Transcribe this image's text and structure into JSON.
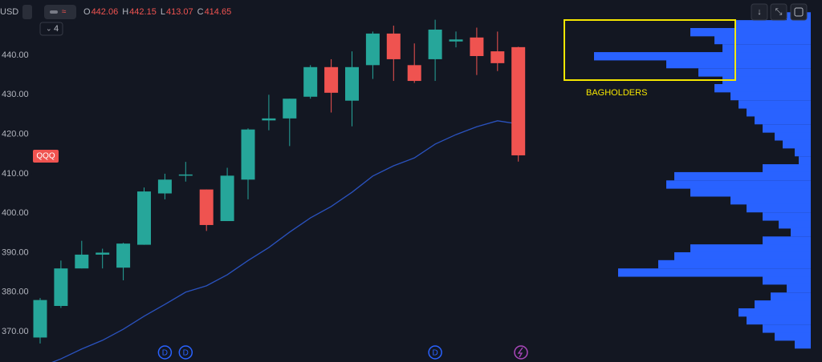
{
  "chart_data": {
    "type": "candlestick",
    "symbol": "QQQ",
    "currency": "USD",
    "indicator_count": 4,
    "ohlc_labels": [
      "O",
      "H",
      "L",
      "C"
    ],
    "annotation": "BAGHOLDERS",
    "ylim": [
      362.3,
      454
    ],
    "yticks": [
      {
        "value": 370,
        "label": "370.00"
      },
      {
        "value": 380,
        "label": "380.00"
      },
      {
        "value": 390,
        "label": "390.00"
      },
      {
        "value": 400,
        "label": "400.00"
      },
      {
        "value": 410,
        "label": "410.00"
      },
      {
        "value": 420,
        "label": "420.00"
      },
      {
        "value": 430,
        "label": "430.00"
      },
      {
        "value": 440,
        "label": "440.00"
      }
    ],
    "grid": false,
    "up_color": "#26a69a",
    "down_color": "#ef5350",
    "open": [
      368.5,
      376.5,
      386,
      389.5,
      386.2,
      392,
      405,
      409.5,
      406,
      398,
      408.5,
      423.5,
      424,
      429.5,
      437,
      428.5,
      437.5,
      445.5,
      437.5,
      439,
      443.5,
      444.5,
      441,
      442.06
    ],
    "high": [
      378.5,
      388,
      393,
      391,
      392.5,
      406.5,
      410,
      413,
      406,
      411.5,
      421.5,
      430,
      429,
      437.5,
      439,
      441,
      446,
      447.5,
      443,
      449,
      446,
      447,
      446,
      442.15
    ],
    "low": [
      367,
      376,
      386,
      386,
      383,
      392,
      403.5,
      408,
      395.5,
      398,
      403.5,
      421,
      417,
      429,
      425.5,
      422,
      434,
      433.5,
      433,
      433.5,
      442,
      435,
      436,
      413.07
    ],
    "close": [
      378,
      386,
      389.5,
      390,
      392.3,
      405.5,
      408.5,
      409.8,
      397,
      409.5,
      421.2,
      424,
      429,
      437,
      430.5,
      437,
      445.5,
      439,
      433.5,
      446.5,
      444,
      439.8,
      438,
      414.65
    ],
    "events": [
      null,
      null,
      null,
      null,
      null,
      null,
      "D",
      "D",
      null,
      null,
      null,
      null,
      null,
      null,
      null,
      null,
      null,
      null,
      null,
      "D",
      null,
      null,
      null,
      null
    ],
    "ma": {
      "color": "#2a52be",
      "values": [
        361,
        363.1,
        365.6,
        367.8,
        370.6,
        373.9,
        376.9,
        380,
        381.6,
        384.4,
        388,
        391.3,
        395.2,
        398.8,
        401.7,
        405.3,
        409.4,
        412,
        414,
        417.5,
        419.9,
        421.9,
        423.4,
        422.6
      ]
    },
    "volume_profile": {
      "color": "#2962ff",
      "xlim": [
        0,
        300
      ],
      "levels": [
        449.9,
        447.9,
        445.9,
        443.9,
        441.8,
        439.8,
        437.8,
        435.7,
        433.7,
        431.7,
        429.7,
        427.6,
        425.6,
        423.6,
        421.5,
        419.5,
        417.5,
        415.5,
        413.4,
        411.4,
        409.4,
        407.3,
        405.3,
        403.3,
        401.3,
        399.2,
        397.2,
        395.2,
        393.1,
        391.1,
        389.1,
        387.1,
        385.0,
        383.0,
        381.0,
        378.9,
        376.9,
        374.9,
        372.9,
        370.8,
        368.8,
        366.8
      ],
      "values": [
        30,
        95,
        150,
        120,
        110,
        270,
        180,
        140,
        110,
        120,
        100,
        90,
        80,
        70,
        60,
        45,
        35,
        20,
        15,
        60,
        170,
        180,
        150,
        100,
        80,
        60,
        40,
        25,
        60,
        150,
        170,
        190,
        240,
        60,
        30,
        50,
        70,
        90,
        80,
        60,
        45,
        20
      ]
    }
  }
}
